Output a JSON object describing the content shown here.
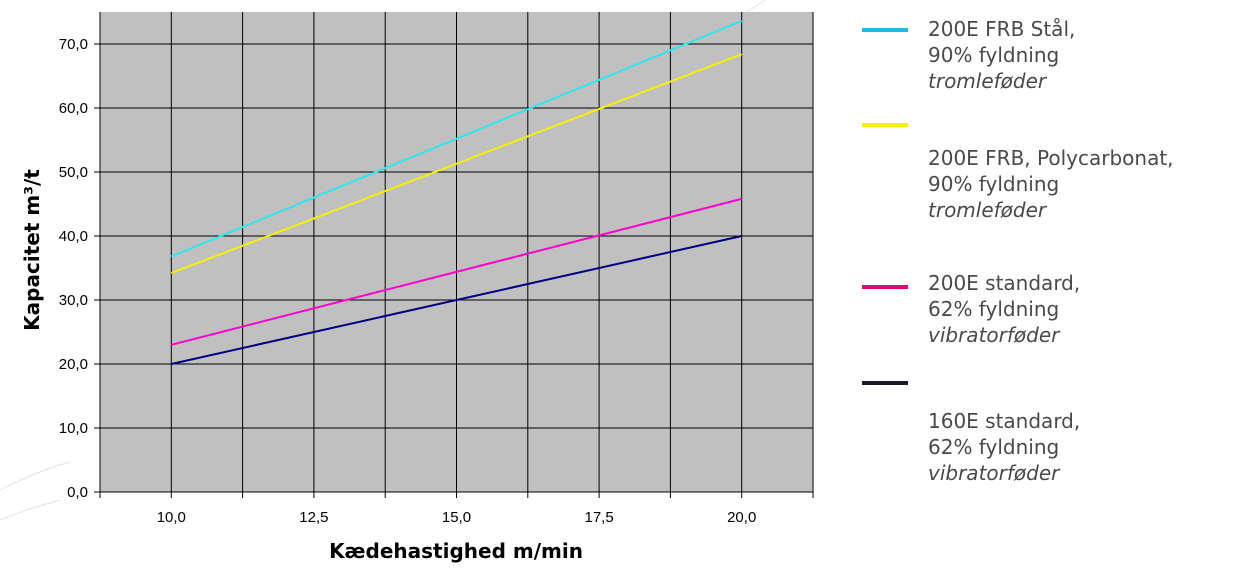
{
  "chart_data": {
    "type": "line",
    "xlabel": "Kædehastighed m/min",
    "ylabel": "Kapacitet  m³/t",
    "xlim": [
      8.75,
      21.25
    ],
    "ylim": [
      0,
      75
    ],
    "x_ticks": [
      "10,0",
      "12,5",
      "15,0",
      "17,5",
      "20,0"
    ],
    "y_ticks": [
      "0,0",
      "10,0",
      "20,0",
      "30,0",
      "40,0",
      "50,0",
      "60,0",
      "70,0"
    ],
    "grid": true,
    "plot_background": "#c0c0c0",
    "legend_position": "right",
    "series": [
      {
        "name_lines": [
          "200E FRB Stål,",
          "90% fyldning"
        ],
        "name_italic": "tromleføder",
        "color": "#33e5f0",
        "x": [
          10,
          20
        ],
        "y": [
          36.8,
          73.6
        ]
      },
      {
        "name_lines": [
          "200E FRB, Polycarbonat,",
          "90% fyldning"
        ],
        "name_italic": "tromleføder",
        "color": "#f5f000",
        "x": [
          10,
          20
        ],
        "y": [
          34.2,
          68.4
        ]
      },
      {
        "name_lines": [
          "200E standard,",
          "62% fyldning"
        ],
        "name_italic": "vibratorføder",
        "color": "#ff00cc",
        "x": [
          10,
          20
        ],
        "y": [
          23.0,
          45.8
        ]
      },
      {
        "name_lines": [
          "160E standard,",
          "62% fyldning"
        ],
        "name_italic": "vibratorføder",
        "color": "#000080",
        "x": [
          10,
          20
        ],
        "y": [
          20.0,
          40.0
        ]
      }
    ]
  },
  "legend": [
    {
      "line1": "200E FRB Stål,",
      "line2": "90% fyldning",
      "line3": "tromleføder",
      "swatch_color": "#1cb8e8"
    },
    {
      "line1": "200E FRB, Polycarbonat,",
      "line2": "90% fyldning",
      "line3": "tromleføder",
      "swatch_color": "#f5f000"
    },
    {
      "line1": "200E standard,",
      "line2": "62% fyldning",
      "line3": "vibratorføder",
      "swatch_color": "#e6007e"
    },
    {
      "line1": "160E standard,",
      "line2": "62% fyldning",
      "line3": "vibratorføder",
      "swatch_color": "#1a1a2e"
    }
  ]
}
